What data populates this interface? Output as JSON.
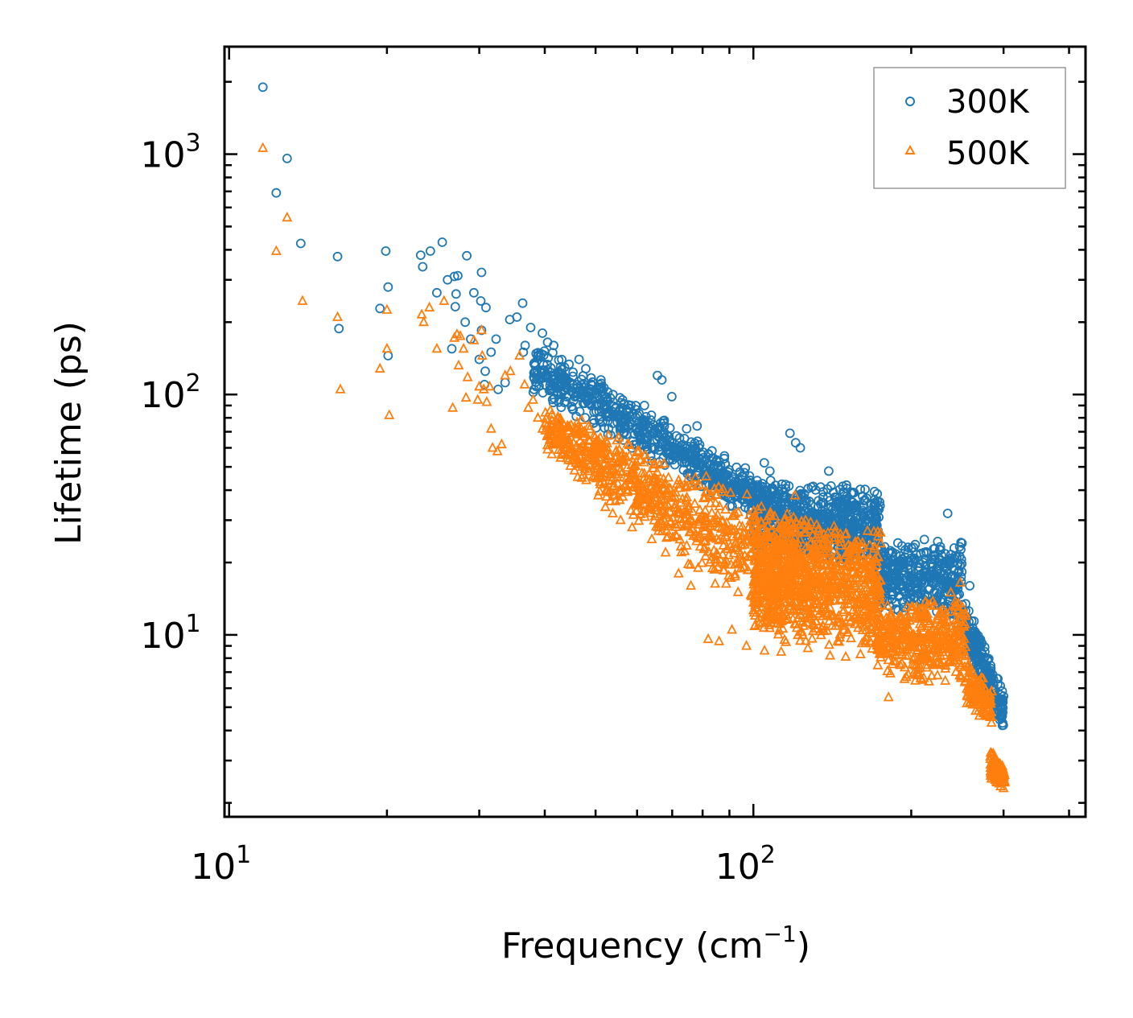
{
  "chart_data": {
    "type": "scatter",
    "title": "",
    "xlabel": "Frequency (cm",
    "xlabel_sup": "−1",
    "xlabel_close": ")",
    "ylabel": "Lifetime (ps)",
    "xscale": "log",
    "yscale": "log",
    "xlim": [
      9.8,
      430
    ],
    "ylim": [
      1.75,
      2800
    ],
    "x_ticks": [
      {
        "value": 10,
        "base": "10",
        "exp": "1"
      },
      {
        "value": 100,
        "base": "10",
        "exp": "2"
      }
    ],
    "y_ticks": [
      {
        "value": 10,
        "base": "10",
        "exp": "1"
      },
      {
        "value": 100,
        "base": "10",
        "exp": "2"
      },
      {
        "value": 1000,
        "base": "10",
        "exp": "3"
      }
    ],
    "legend_position": "top-right",
    "series": [
      {
        "name": "300K",
        "marker": "circle",
        "color": "#1f77b4",
        "points": [
          [
            11.6,
            1900
          ],
          [
            12.9,
            960
          ],
          [
            12.3,
            690
          ],
          [
            13.7,
            425
          ],
          [
            16.1,
            375
          ],
          [
            16.2,
            188
          ],
          [
            19.4,
            228
          ],
          [
            19.9,
            395
          ],
          [
            20.1,
            280
          ],
          [
            20.1,
            145
          ],
          [
            23.2,
            380
          ],
          [
            23.4,
            340
          ],
          [
            24.2,
            395
          ],
          [
            24.9,
            265
          ],
          [
            25.5,
            430
          ],
          [
            26.1,
            300
          ],
          [
            26.6,
            155
          ],
          [
            26.9,
            310
          ],
          [
            27.3,
            312
          ],
          [
            27.1,
            262
          ],
          [
            27.0,
            232
          ],
          [
            28.4,
            378
          ],
          [
            28.2,
            200
          ],
          [
            28.9,
            170
          ],
          [
            29.3,
            265
          ],
          [
            30.0,
            140
          ],
          [
            30.3,
            322
          ],
          [
            30.2,
            245
          ],
          [
            30.3,
            185
          ],
          [
            30.7,
            110
          ],
          [
            30.9,
            230
          ],
          [
            30.8,
            125
          ],
          [
            31.6,
            150
          ],
          [
            32.3,
            170
          ],
          [
            32.6,
            105
          ],
          [
            33.6,
            112
          ],
          [
            34.3,
            205
          ],
          [
            35.4,
            210
          ],
          [
            36.3,
            240
          ],
          [
            36.4,
            150
          ],
          [
            36.7,
            160
          ],
          [
            37.6,
            190
          ],
          [
            38.5,
            148
          ],
          [
            39.6,
            180
          ],
          [
            40.5,
            165
          ],
          [
            40.6,
            142
          ],
          [
            41.6,
            160
          ],
          [
            41.4,
            115
          ],
          [
            43.0,
            102
          ],
          [
            44.0,
            98
          ],
          [
            46.5,
            140
          ],
          [
            47.9,
            128
          ],
          [
            48.4,
            98
          ],
          [
            51.2,
            115
          ],
          [
            52.7,
            95
          ],
          [
            56.3,
            95
          ],
          [
            58.4,
            90
          ],
          [
            63.9,
            82
          ],
          [
            65.6,
            120
          ],
          [
            66.9,
            115
          ],
          [
            69.9,
            98
          ],
          [
            74.6,
            72
          ],
          [
            78.1,
            74
          ],
          [
            104.9,
            52
          ],
          [
            107.5,
            48
          ],
          [
            117.4,
            69
          ],
          [
            120.4,
            63
          ],
          [
            122.9,
            60
          ],
          [
            139.2,
            48
          ],
          [
            150.5,
            42
          ],
          [
            234.7,
            32
          ],
          [
            258.6,
            16
          ],
          [
            245.3,
            12.5
          ],
          [
            255.6,
            11.8
          ],
          [
            270.1,
            9.2
          ],
          [
            289.8,
            5.2
          ],
          [
            298.5,
            4.2
          ]
        ]
      },
      {
        "name": "500K",
        "marker": "triangle",
        "color": "#ff7f0e",
        "points": [
          [
            11.6,
            1060
          ],
          [
            12.9,
            545
          ],
          [
            12.3,
            395
          ],
          [
            13.8,
            245
          ],
          [
            16.1,
            210
          ],
          [
            16.3,
            105
          ],
          [
            19.4,
            128
          ],
          [
            20.0,
            225
          ],
          [
            20.0,
            155
          ],
          [
            20.2,
            82
          ],
          [
            23.3,
            215
          ],
          [
            23.5,
            200
          ],
          [
            24.1,
            230
          ],
          [
            24.9,
            155
          ],
          [
            25.7,
            245
          ],
          [
            26.7,
            88
          ],
          [
            26.9,
            172
          ],
          [
            27.2,
            178
          ],
          [
            27.4,
            132
          ],
          [
            27.6,
            175
          ],
          [
            28.0,
            155
          ],
          [
            28.3,
            97
          ],
          [
            28.5,
            118
          ],
          [
            29.3,
            168
          ],
          [
            29.8,
            95
          ],
          [
            30.0,
            108
          ],
          [
            30.3,
            185
          ],
          [
            30.4,
            145
          ],
          [
            30.6,
            105
          ],
          [
            31.0,
            93
          ],
          [
            31.4,
            108
          ],
          [
            31.6,
            72
          ],
          [
            31.8,
            60
          ],
          [
            32.5,
            58
          ],
          [
            33.1,
            62
          ],
          [
            33.6,
            120
          ],
          [
            34.4,
            125
          ],
          [
            35.8,
            145
          ],
          [
            36.6,
            110
          ],
          [
            37.2,
            88
          ],
          [
            38.0,
            95
          ],
          [
            38.8,
            80
          ],
          [
            39.6,
            72
          ],
          [
            40.5,
            68
          ],
          [
            41.0,
            86
          ],
          [
            42.5,
            62
          ],
          [
            44.1,
            60
          ],
          [
            45.9,
            52
          ],
          [
            47.2,
            50
          ],
          [
            48.0,
            44
          ],
          [
            50.6,
            38
          ],
          [
            52.2,
            34
          ],
          [
            53.9,
            32
          ],
          [
            55.8,
            30
          ],
          [
            58.7,
            28
          ],
          [
            64.0,
            25
          ],
          [
            68.0,
            22
          ],
          [
            72.0,
            18
          ],
          [
            76.0,
            16
          ],
          [
            82.0,
            9.6
          ],
          [
            86.0,
            9.4
          ],
          [
            91.0,
            10.5
          ],
          [
            97.0,
            9.0
          ],
          [
            105.0,
            8.6
          ],
          [
            113.0,
            8.5
          ],
          [
            120.0,
            38
          ],
          [
            127.0,
            8.8
          ],
          [
            140.0,
            8.2
          ],
          [
            150.0,
            8.1
          ],
          [
            160.0,
            8.3
          ],
          [
            172.0,
            9.5
          ],
          [
            181.0,
            5.5
          ],
          [
            195.0,
            11.0
          ],
          [
            210.0,
            12.0
          ],
          [
            225.0,
            9.0
          ],
          [
            238.0,
            15.0
          ],
          [
            248.0,
            16.5
          ],
          [
            262.0,
            7.0
          ],
          [
            270.0,
            6.2
          ],
          [
            285.0,
            3.2
          ],
          [
            295.0,
            2.5
          ],
          [
            300.0,
            2.3
          ]
        ]
      }
    ],
    "dense_regions": [
      {
        "series": "300K",
        "x0": 38,
        "x1": 105,
        "y_at_x0": [
          100,
          175
        ],
        "y_at_x1": [
          28,
          45
        ],
        "n": 650
      },
      {
        "series": "300K",
        "x0": 100,
        "x1": 175,
        "y_at_x0": [
          22,
          45
        ],
        "y_at_x1": [
          18,
          42
        ],
        "n": 700
      },
      {
        "series": "300K",
        "x0": 172,
        "x1": 250,
        "y_at_x0": [
          12,
          25
        ],
        "y_at_x1": [
          11,
          27
        ],
        "n": 380
      },
      {
        "series": "300K",
        "x0": 250,
        "x1": 300,
        "y_at_x0": [
          8.5,
          15
        ],
        "y_at_x1": [
          3.9,
          6
        ],
        "n": 220
      },
      {
        "series": "500K",
        "x0": 40,
        "x1": 120,
        "y_at_x0": [
          55,
          95
        ],
        "y_at_x1": [
          9,
          32
        ],
        "n": 800
      },
      {
        "series": "500K",
        "x0": 100,
        "x1": 175,
        "y_at_x0": [
          9,
          35
        ],
        "y_at_x1": [
          8,
          30
        ],
        "n": 900
      },
      {
        "series": "500K",
        "x0": 172,
        "x1": 255,
        "y_at_x0": [
          6.5,
          14
        ],
        "y_at_x1": [
          6,
          16
        ],
        "n": 420
      },
      {
        "series": "500K",
        "x0": 255,
        "x1": 285,
        "y_at_x0": [
          5,
          8
        ],
        "y_at_x1": [
          4,
          6
        ],
        "n": 120
      },
      {
        "series": "500K",
        "x0": 283,
        "x1": 302,
        "y_at_x0": [
          2.4,
          3.4
        ],
        "y_at_x1": [
          2.3,
          2.8
        ],
        "n": 120
      }
    ]
  }
}
